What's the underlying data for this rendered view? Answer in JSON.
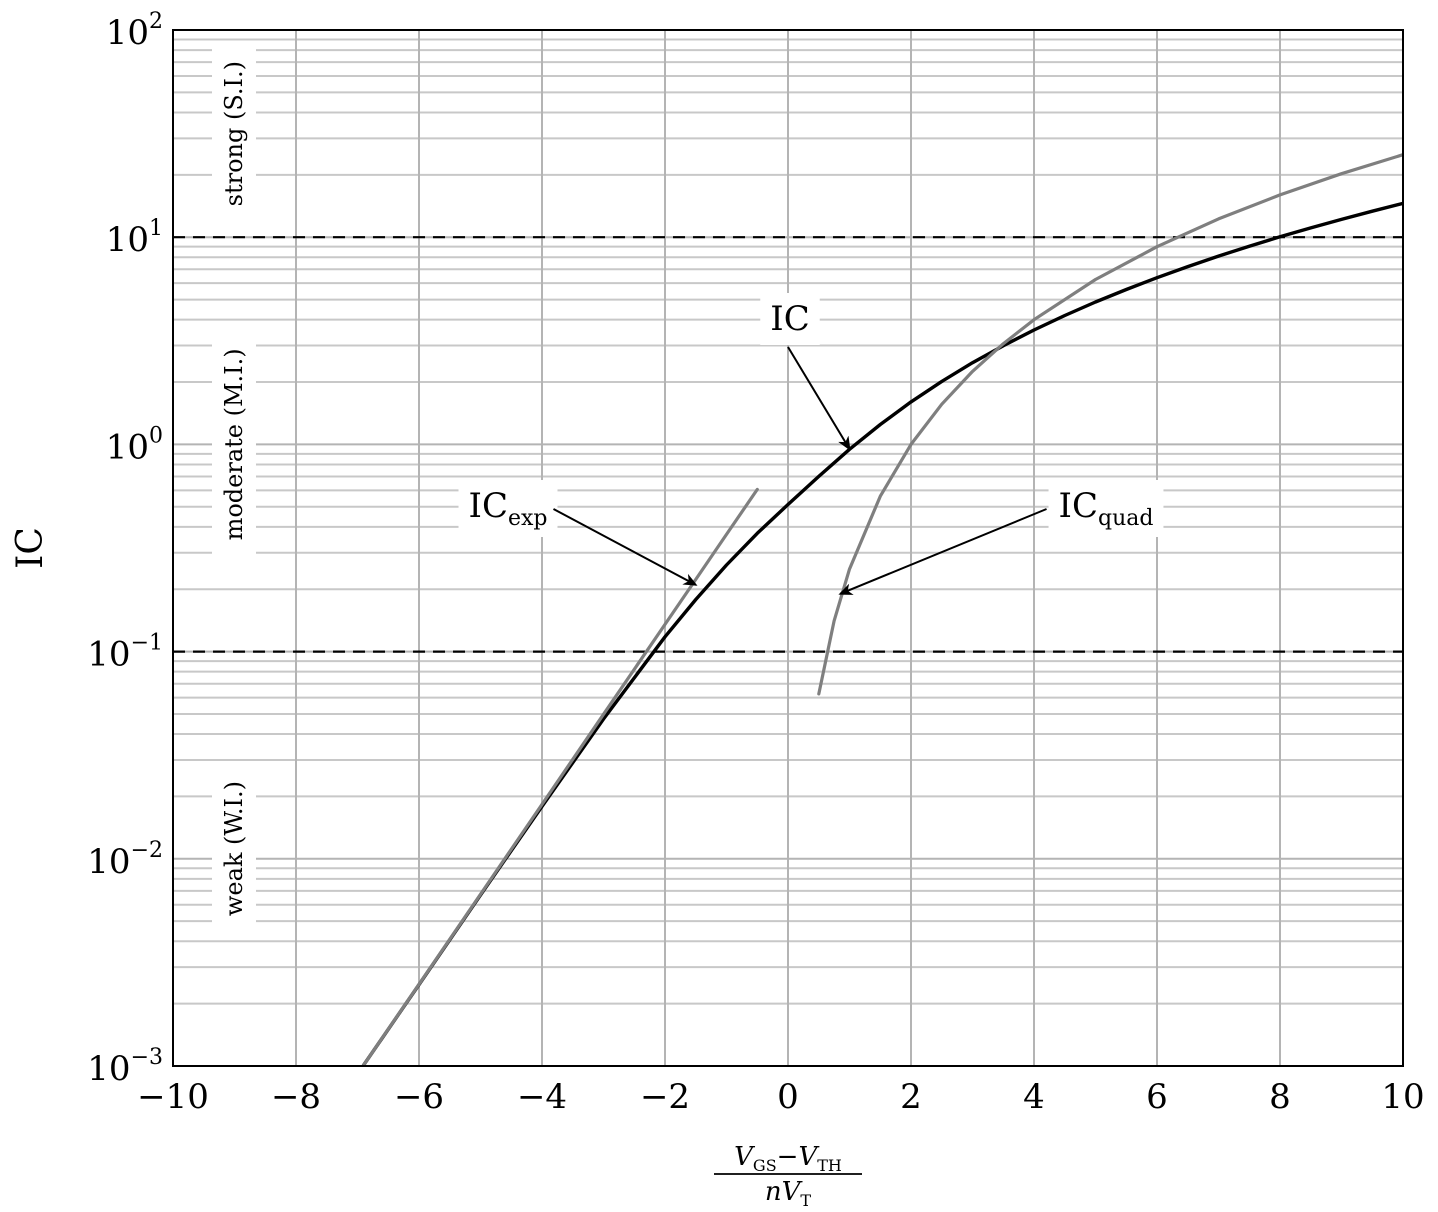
{
  "chart_data": {
    "type": "line",
    "xlabel": {
      "num_a": "V",
      "num_a_sub": "GS",
      "minus": "−",
      "num_b": "V",
      "num_b_sub": "TH",
      "den_a": "nV",
      "den_a_sub": "T"
    },
    "ylabel": "IC",
    "xlim": [
      -10,
      10
    ],
    "ylim": [
      0.001,
      100
    ],
    "yscale": "log",
    "grid": true,
    "x_ticks": [
      {
        "value": -10,
        "label": "−10"
      },
      {
        "value": -8,
        "label": "−8"
      },
      {
        "value": -6,
        "label": "−6"
      },
      {
        "value": -4,
        "label": "−4"
      },
      {
        "value": -2,
        "label": "−2"
      },
      {
        "value": 0,
        "label": "0"
      },
      {
        "value": 2,
        "label": "2"
      },
      {
        "value": 4,
        "label": "4"
      },
      {
        "value": 6,
        "label": "6"
      },
      {
        "value": 8,
        "label": "8"
      },
      {
        "value": 10,
        "label": "10"
      }
    ],
    "y_ticks": [
      {
        "value": 0.001,
        "base": "10",
        "exp": "−3"
      },
      {
        "value": 0.01,
        "base": "10",
        "exp": "−2"
      },
      {
        "value": 0.1,
        "base": "10",
        "exp": "−1"
      },
      {
        "value": 1,
        "base": "10",
        "exp": "0"
      },
      {
        "value": 10,
        "base": "10",
        "exp": "1"
      },
      {
        "value": 100,
        "base": "10",
        "exp": "2"
      }
    ],
    "thresholds": [
      0.1,
      10
    ],
    "regions": [
      {
        "label": "strong (S.I.)",
        "y_center": 31.6
      },
      {
        "label": "moderate (M.I.)",
        "y_center": 1.0
      },
      {
        "label": "weak (W.I.)",
        "y_center": 0.0112
      }
    ],
    "series": [
      {
        "name": "IC",
        "label_sub": "",
        "color": "#000000",
        "x": [
          -6.9,
          -6,
          -5,
          -4,
          -3,
          -2,
          -1.5,
          -1,
          -0.5,
          0,
          0.5,
          1,
          1.5,
          2,
          2.5,
          3,
          3.5,
          4,
          4.5,
          5,
          5.5,
          6,
          6.5,
          7,
          7.5,
          8,
          8.5,
          9,
          9.5,
          10
        ],
        "y": [
          0.00101,
          0.00247,
          0.00669,
          0.0179,
          0.0473,
          0.1179,
          0.1784,
          0.2618,
          0.3722,
          0.5129,
          0.7007,
          0.9468,
          1.2476,
          1.604,
          2.015,
          2.479,
          2.996,
          3.566,
          4.189,
          4.866,
          5.595,
          6.378,
          7.213,
          8.102,
          9.044,
          10.04,
          11.09,
          12.19,
          13.35,
          14.56
        ]
      },
      {
        "name": "IC",
        "label_sub": "exp",
        "color": "#7f7f7f",
        "x": [
          -6.9,
          -6,
          -5,
          -4,
          -3,
          -2,
          -1.5,
          -1,
          -0.5
        ],
        "y": [
          0.00101,
          0.00248,
          0.00674,
          0.0183,
          0.0498,
          0.1353,
          0.2231,
          0.3679,
          0.6065
        ]
      },
      {
        "name": "IC",
        "label_sub": "quad",
        "color": "#7f7f7f",
        "x": [
          0.5,
          0.75,
          1,
          1.5,
          2,
          2.5,
          3,
          3.5,
          4,
          5,
          6,
          7,
          8,
          9,
          10
        ],
        "y": [
          0.0625,
          0.1406,
          0.25,
          0.5625,
          1.0,
          1.5625,
          2.25,
          3.0625,
          4.0,
          6.25,
          9.0,
          12.25,
          16.0,
          20.25,
          25.0
        ]
      }
    ],
    "annotations": [
      {
        "text": "IC",
        "sub": "",
        "target": [
          1.0,
          0.95
        ]
      },
      {
        "text": "IC",
        "sub": "exp",
        "target": [
          -1.5,
          0.21
        ]
      },
      {
        "text": "IC",
        "sub": "quad",
        "target": [
          0.85,
          0.19
        ]
      }
    ]
  }
}
